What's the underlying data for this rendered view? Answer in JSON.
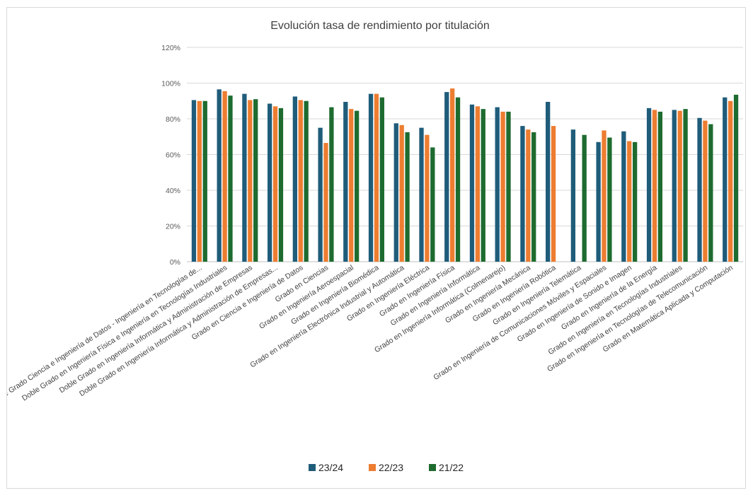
{
  "chart_data": {
    "type": "bar",
    "title": "Evolución tasa de rendimiento por titulación",
    "xlabel": "",
    "ylabel": "",
    "ylim": [
      0,
      120
    ],
    "yticks": [
      "0%",
      "20%",
      "40%",
      "60%",
      "80%",
      "100%",
      "120%"
    ],
    "grid": true,
    "legend_position": "bottom",
    "categories": [
      "Doble Grado Ciencia e Ingeniería de Datos - Ingeniería en Tecnologías de...",
      "Doble Grado en Ingeniería Física e Ingeniería en Tecnologías Industriales",
      "Doble Grado en Ingeniería Informática y Administración de Empresas",
      "Doble Grado en Ingeniería Informática y Administración de Empresas...",
      "Grado en Ciencia e Ingeniería de Datos",
      "Grado en Ciencias",
      "Grado en Ingeniería Aeroespacial",
      "Grado en Ingeniería Biomédica",
      "Grado en Ingeniería Electrónica Industrial y Automática",
      "Grado en Ingeniería Eléctrica",
      "Grado en Ingeniería Física",
      "Grado en Ingeniería Informática",
      "Grado en Ingeniería Informática (Colmenarejo)",
      "Grado en Ingeniería Mecánica",
      "Grado en Ingeniería Robótica",
      "Grado en Ingeniería Telemática",
      "Grado en Ingeniería de Comunicaciones Móviles y Espaciales",
      "Grado en Ingeniería de Sonido e Imagen",
      "Grado en Ingeniería de la Energía",
      "Grado en Ingeniería en Tecnologías Industriales",
      "Grado en Ingeniería en Tecnologías de Telecomunicación",
      "Grado en Matemática Aplicada y Computación"
    ],
    "series": [
      {
        "name": "23/24",
        "color": "#1f5c7a",
        "values": [
          90.5,
          96.5,
          94,
          88.5,
          92.5,
          75,
          89.5,
          94,
          77.5,
          75,
          95,
          88,
          86.5,
          76,
          89.5,
          74,
          67,
          73,
          86,
          85,
          80.5,
          92
        ]
      },
      {
        "name": "22/23",
        "color": "#ed7d31",
        "values": [
          90,
          95.5,
          90.5,
          87,
          90.5,
          66.5,
          85.5,
          94,
          76.5,
          71,
          97,
          87,
          84,
          74,
          76,
          null,
          73.5,
          67.5,
          85,
          84.5,
          79,
          90
        ]
      },
      {
        "name": "21/22",
        "color": "#1e6b2f",
        "values": [
          90,
          93,
          91,
          86,
          90,
          86.5,
          84.5,
          92,
          72.5,
          64,
          92,
          85.5,
          84,
          72.5,
          null,
          71,
          69.5,
          67,
          84,
          85.5,
          77,
          93.5
        ]
      }
    ]
  }
}
